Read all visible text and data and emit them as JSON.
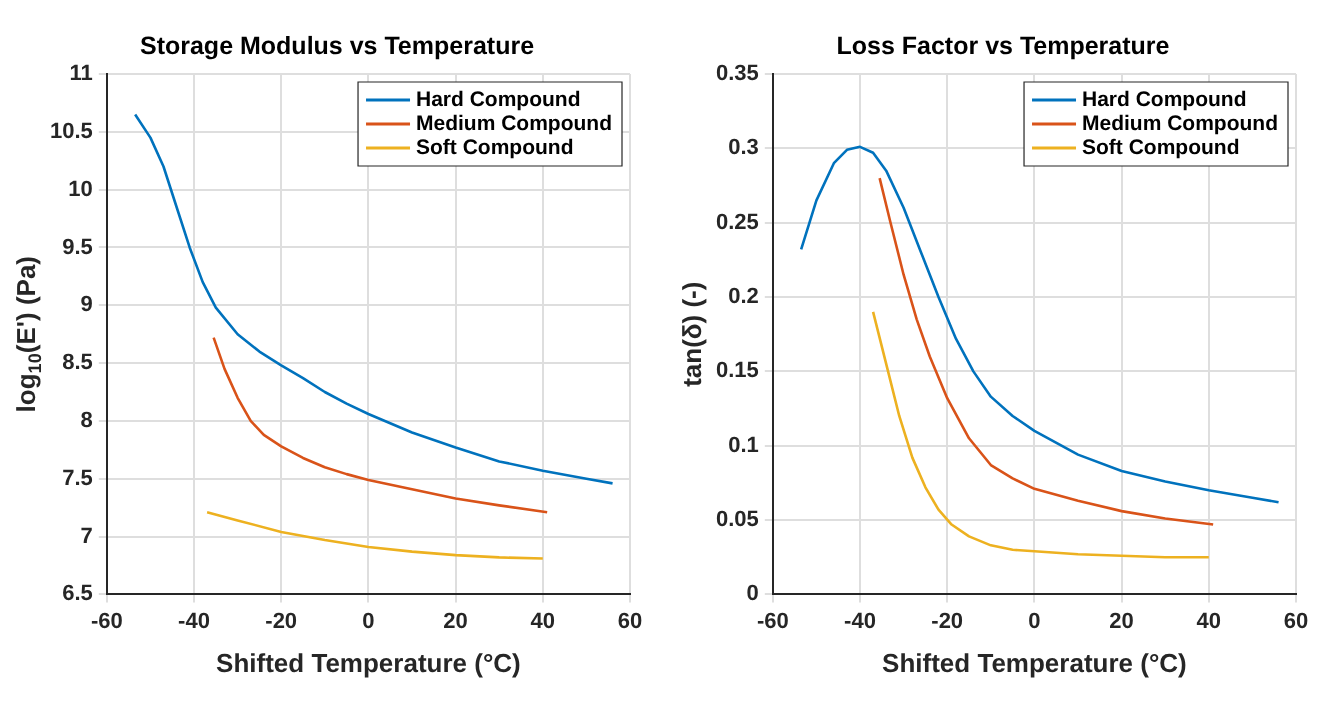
{
  "chart_data": [
    {
      "type": "line",
      "title": "Storage Modulus vs Temperature",
      "xlabel": "Shifted Temperature (°C)",
      "ylabel": "log$_{10}$(E') (Pa)",
      "xlim": [
        -60,
        60
      ],
      "xticks": [
        -60,
        -40,
        -20,
        0,
        20,
        40,
        60
      ],
      "ylim": [
        6.5,
        11
      ],
      "yticks": [
        6.5,
        7,
        7.5,
        8,
        8.5,
        9,
        9.5,
        10,
        10.5,
        11
      ],
      "grid": true,
      "legend": "top right",
      "marker": "none",
      "line_style": "solid",
      "series": [
        {
          "name": "Hard Compound",
          "color": "#0072bd",
          "x": [
            -53.5,
            -50,
            -47,
            -44,
            -41,
            -38,
            -35,
            -30,
            -25,
            -20,
            -15,
            -10,
            -5,
            0,
            10,
            20,
            30,
            40,
            50,
            56
          ],
          "values": [
            10.65,
            10.45,
            10.2,
            9.85,
            9.5,
            9.2,
            8.98,
            8.75,
            8.6,
            8.48,
            8.37,
            8.25,
            8.15,
            8.06,
            7.9,
            7.77,
            7.65,
            7.57,
            7.5,
            7.46
          ]
        },
        {
          "name": "Medium Compound",
          "color": "#d95319",
          "x": [
            -35.5,
            -33,
            -30,
            -27,
            -24,
            -20,
            -15,
            -10,
            -5,
            0,
            10,
            20,
            30,
            41
          ],
          "values": [
            8.72,
            8.45,
            8.2,
            8.0,
            7.88,
            7.78,
            7.68,
            7.6,
            7.54,
            7.49,
            7.41,
            7.33,
            7.27,
            7.21
          ]
        },
        {
          "name": "Soft Compound",
          "color": "#edb120",
          "x": [
            -37,
            -30,
            -20,
            -10,
            0,
            10,
            20,
            30,
            40
          ],
          "values": [
            7.21,
            7.14,
            7.04,
            6.97,
            6.91,
            6.87,
            6.84,
            6.82,
            6.81
          ]
        }
      ]
    },
    {
      "type": "line",
      "title": "Loss Factor vs Temperature",
      "xlabel": "Shifted Temperature (°C)",
      "ylabel": "tan(δ) (-)",
      "xlim": [
        -60,
        60
      ],
      "xticks": [
        -60,
        -40,
        -20,
        0,
        20,
        40,
        60
      ],
      "ylim": [
        0,
        0.35
      ],
      "yticks": [
        0,
        0.05,
        0.1,
        0.15,
        0.2,
        0.25,
        0.3,
        0.35
      ],
      "grid": true,
      "legend": "top right",
      "marker": "none",
      "line_style": "solid",
      "series": [
        {
          "name": "Hard Compound",
          "color": "#0072bd",
          "x": [
            -53.5,
            -50,
            -46,
            -43,
            -40,
            -37,
            -34,
            -30,
            -26,
            -22,
            -18,
            -14,
            -10,
            -5,
            0,
            10,
            20,
            30,
            40,
            50,
            56
          ],
          "values": [
            0.232,
            0.265,
            0.29,
            0.299,
            0.301,
            0.297,
            0.285,
            0.26,
            0.23,
            0.2,
            0.172,
            0.15,
            0.133,
            0.12,
            0.11,
            0.094,
            0.083,
            0.076,
            0.07,
            0.065,
            0.062
          ]
        },
        {
          "name": "Medium Compound",
          "color": "#d95319",
          "x": [
            -35.5,
            -33,
            -30,
            -27,
            -24,
            -20,
            -15,
            -10,
            -5,
            0,
            10,
            20,
            30,
            41
          ],
          "values": [
            0.28,
            0.25,
            0.215,
            0.185,
            0.16,
            0.132,
            0.105,
            0.087,
            0.078,
            0.071,
            0.063,
            0.056,
            0.051,
            0.047
          ]
        },
        {
          "name": "Soft Compound",
          "color": "#edb120",
          "x": [
            -37,
            -34,
            -31,
            -28,
            -25,
            -22,
            -19,
            -15,
            -10,
            -5,
            0,
            10,
            20,
            30,
            40
          ],
          "values": [
            0.19,
            0.155,
            0.12,
            0.092,
            0.072,
            0.057,
            0.047,
            0.039,
            0.033,
            0.03,
            0.029,
            0.027,
            0.026,
            0.025,
            0.025
          ]
        }
      ]
    }
  ]
}
